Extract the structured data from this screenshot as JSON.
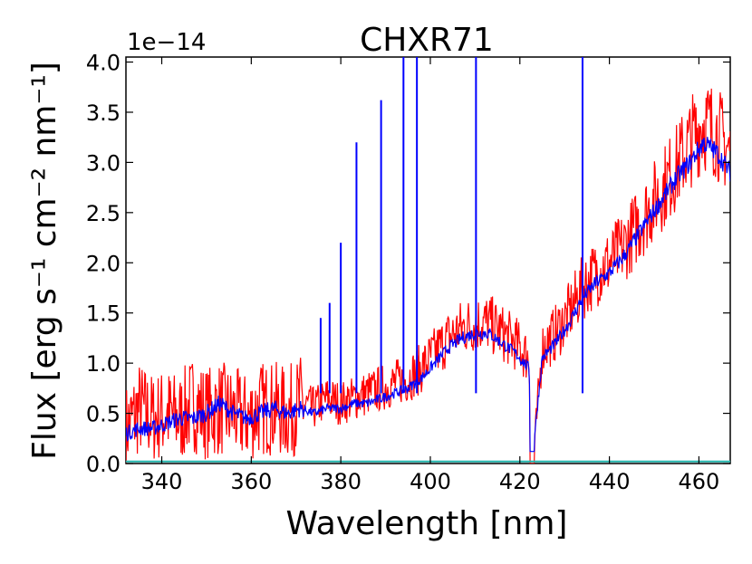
{
  "chart_data": {
    "type": "line",
    "title": "CHXR71",
    "xlabel": "Wavelength [nm]",
    "ylabel": "Flux [erg s⁻¹ cm⁻² nm⁻¹]",
    "y_offset_text": "1e−14",
    "xlim": [
      332,
      467
    ],
    "ylim": [
      0.0,
      4.05
    ],
    "x_ticks": [
      340,
      360,
      380,
      400,
      420,
      440,
      460
    ],
    "x_tick_labels": [
      "340",
      "360",
      "380",
      "400",
      "420",
      "440",
      "460"
    ],
    "y_ticks": [
      0.0,
      0.5,
      1.0,
      1.5,
      2.0,
      2.5,
      3.0,
      3.5,
      4.0
    ],
    "y_tick_labels": [
      "0.0",
      "0.5",
      "1.0",
      "1.5",
      "2.0",
      "2.5",
      "3.0",
      "3.5",
      "4.0"
    ],
    "series": [
      {
        "name": "spectrum-red",
        "color": "#ff0000",
        "x": [
          332,
          335,
          338,
          341,
          344,
          347,
          350,
          353,
          356,
          359,
          362,
          365,
          368,
          371,
          374,
          377,
          380,
          383,
          386,
          389,
          392,
          395,
          398,
          401,
          404,
          407,
          410,
          413,
          416,
          419,
          422,
          423,
          425,
          428,
          431,
          434,
          437,
          440,
          443,
          446,
          449,
          452,
          455,
          458,
          461,
          464,
          467
        ],
        "y": [
          0.35,
          0.55,
          0.45,
          0.5,
          0.45,
          0.6,
          0.5,
          0.55,
          0.5,
          0.45,
          0.55,
          0.55,
          0.5,
          0.6,
          0.55,
          0.65,
          0.6,
          0.65,
          0.7,
          0.75,
          0.8,
          0.85,
          0.95,
          1.1,
          1.25,
          1.35,
          1.4,
          1.4,
          1.3,
          1.2,
          1.05,
          0.0,
          1.15,
          1.3,
          1.5,
          1.75,
          1.9,
          2.0,
          2.15,
          2.35,
          2.55,
          2.75,
          2.95,
          3.2,
          3.4,
          3.3,
          3.1
        ]
      },
      {
        "name": "spectrum-blue",
        "color": "#0000ff",
        "x": [
          332,
          335,
          338,
          341,
          344,
          347,
          350,
          353,
          356,
          359,
          362,
          365,
          368,
          371,
          374,
          377,
          380,
          383,
          386,
          389,
          392,
          395,
          398,
          401,
          404,
          407,
          410,
          413,
          416,
          419,
          422,
          423,
          425,
          428,
          431,
          434,
          437,
          440,
          443,
          446,
          449,
          452,
          455,
          458,
          461,
          464,
          467
        ],
        "y": [
          0.3,
          0.35,
          0.35,
          0.4,
          0.45,
          0.45,
          0.5,
          0.6,
          0.5,
          0.45,
          0.5,
          0.55,
          0.5,
          0.55,
          0.5,
          0.55,
          0.55,
          0.6,
          0.6,
          0.65,
          0.7,
          0.75,
          0.85,
          1.0,
          1.15,
          1.25,
          1.3,
          1.3,
          1.2,
          1.1,
          0.95,
          0.15,
          1.05,
          1.2,
          1.4,
          1.65,
          1.8,
          1.9,
          2.05,
          2.25,
          2.45,
          2.65,
          2.85,
          3.0,
          3.2,
          3.1,
          2.9
        ]
      },
      {
        "name": "baseline-cyan",
        "color": "#20b2aa",
        "x": [
          332,
          467
        ],
        "y": [
          0.02,
          0.02
        ]
      }
    ],
    "emission_lines": {
      "color": "#0000ff",
      "lines": [
        {
          "x": 375.5,
          "y": 1.45
        },
        {
          "x": 377.5,
          "y": 1.6
        },
        {
          "x": 380.0,
          "y": 2.2
        },
        {
          "x": 383.5,
          "y": 3.2
        },
        {
          "x": 389.0,
          "y": 3.62
        },
        {
          "x": 394.0,
          "y": 4.05
        },
        {
          "x": 397.0,
          "y": 4.05
        },
        {
          "x": 410.2,
          "y": 4.05
        },
        {
          "x": 434.0,
          "y": 4.05
        }
      ]
    }
  }
}
